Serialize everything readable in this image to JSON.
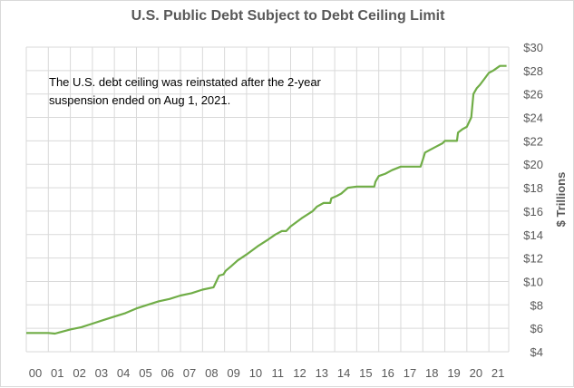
{
  "chart_data": {
    "type": "line",
    "title": "U.S. Public Debt Subject to Debt Ceiling Limit",
    "ylabel": "$ Trillions",
    "xlabel": "",
    "annotation": "The U.S. debt ceiling was reinstated after the 2-year suspension ended on Aug 1, 2021.",
    "ylim": [
      4,
      30
    ],
    "xlim": [
      2000,
      2021.9
    ],
    "grid": true,
    "y_axis_side": "right",
    "y_ticks": [
      4,
      6,
      8,
      10,
      12,
      14,
      16,
      18,
      20,
      22,
      24,
      26,
      28,
      30
    ],
    "y_tick_labels": [
      "$4",
      "$6",
      "$8",
      "$10",
      "$12",
      "$14",
      "$16",
      "$18",
      "$20",
      "$22",
      "$24",
      "$26",
      "$28",
      "$30"
    ],
    "x_ticks": [
      2000,
      2001,
      2002,
      2003,
      2004,
      2005,
      2006,
      2007,
      2008,
      2009,
      2010,
      2011,
      2012,
      2013,
      2014,
      2015,
      2016,
      2017,
      2018,
      2019,
      2020,
      2021
    ],
    "x_tick_labels": [
      "00",
      "01",
      "02",
      "03",
      "04",
      "05",
      "06",
      "07",
      "08",
      "09",
      "10",
      "11",
      "12",
      "13",
      "14",
      "15",
      "16",
      "17",
      "18",
      "19",
      "20",
      "21"
    ],
    "line_color": "#70ad47",
    "series": [
      {
        "x": [
          2000.0,
          2000.5,
          2001.0,
          2001.3,
          2001.5,
          2002.0,
          2002.5,
          2003.0,
          2003.5,
          2004.0,
          2004.5,
          2005.0,
          2005.5,
          2006.0,
          2006.5,
          2007.0,
          2007.5,
          2008.0,
          2008.5,
          2008.75,
          2008.95,
          2009.05,
          2009.3,
          2009.6,
          2010.0,
          2010.5,
          2011.0,
          2011.3,
          2011.6,
          2011.8,
          2012.0,
          2012.5,
          2013.0,
          2013.2,
          2013.5,
          2013.8,
          2013.85,
          2014.1,
          2014.3,
          2014.6,
          2015.0,
          2015.2,
          2015.5,
          2015.8,
          2015.85,
          2016.0,
          2016.3,
          2016.6,
          2017.0,
          2017.2,
          2017.5,
          2017.9,
          2018.0,
          2018.1,
          2018.3,
          2018.6,
          2018.9,
          2019.0,
          2019.3,
          2019.55,
          2019.6,
          2019.8,
          2020.0,
          2020.2,
          2020.3,
          2020.45,
          2020.6,
          2020.8,
          2021.0,
          2021.2,
          2021.5,
          2021.58,
          2021.8
        ],
        "y": [
          5.6,
          5.6,
          5.6,
          5.55,
          5.65,
          5.9,
          6.1,
          6.4,
          6.7,
          7.0,
          7.3,
          7.7,
          8.0,
          8.3,
          8.5,
          8.8,
          9.0,
          9.3,
          9.5,
          10.5,
          10.6,
          10.9,
          11.3,
          11.8,
          12.3,
          13.0,
          13.6,
          14.0,
          14.3,
          14.3,
          14.7,
          15.4,
          16.0,
          16.4,
          16.7,
          16.7,
          17.1,
          17.3,
          17.5,
          18.0,
          18.1,
          18.1,
          18.1,
          18.1,
          18.5,
          19.0,
          19.2,
          19.5,
          19.8,
          19.8,
          19.8,
          19.8,
          20.4,
          21.0,
          21.2,
          21.5,
          21.8,
          22.0,
          22.0,
          22.0,
          22.7,
          23.0,
          23.2,
          24.0,
          26.0,
          26.5,
          26.8,
          27.3,
          27.8,
          28.0,
          28.4,
          28.4,
          28.4
        ]
      }
    ]
  }
}
